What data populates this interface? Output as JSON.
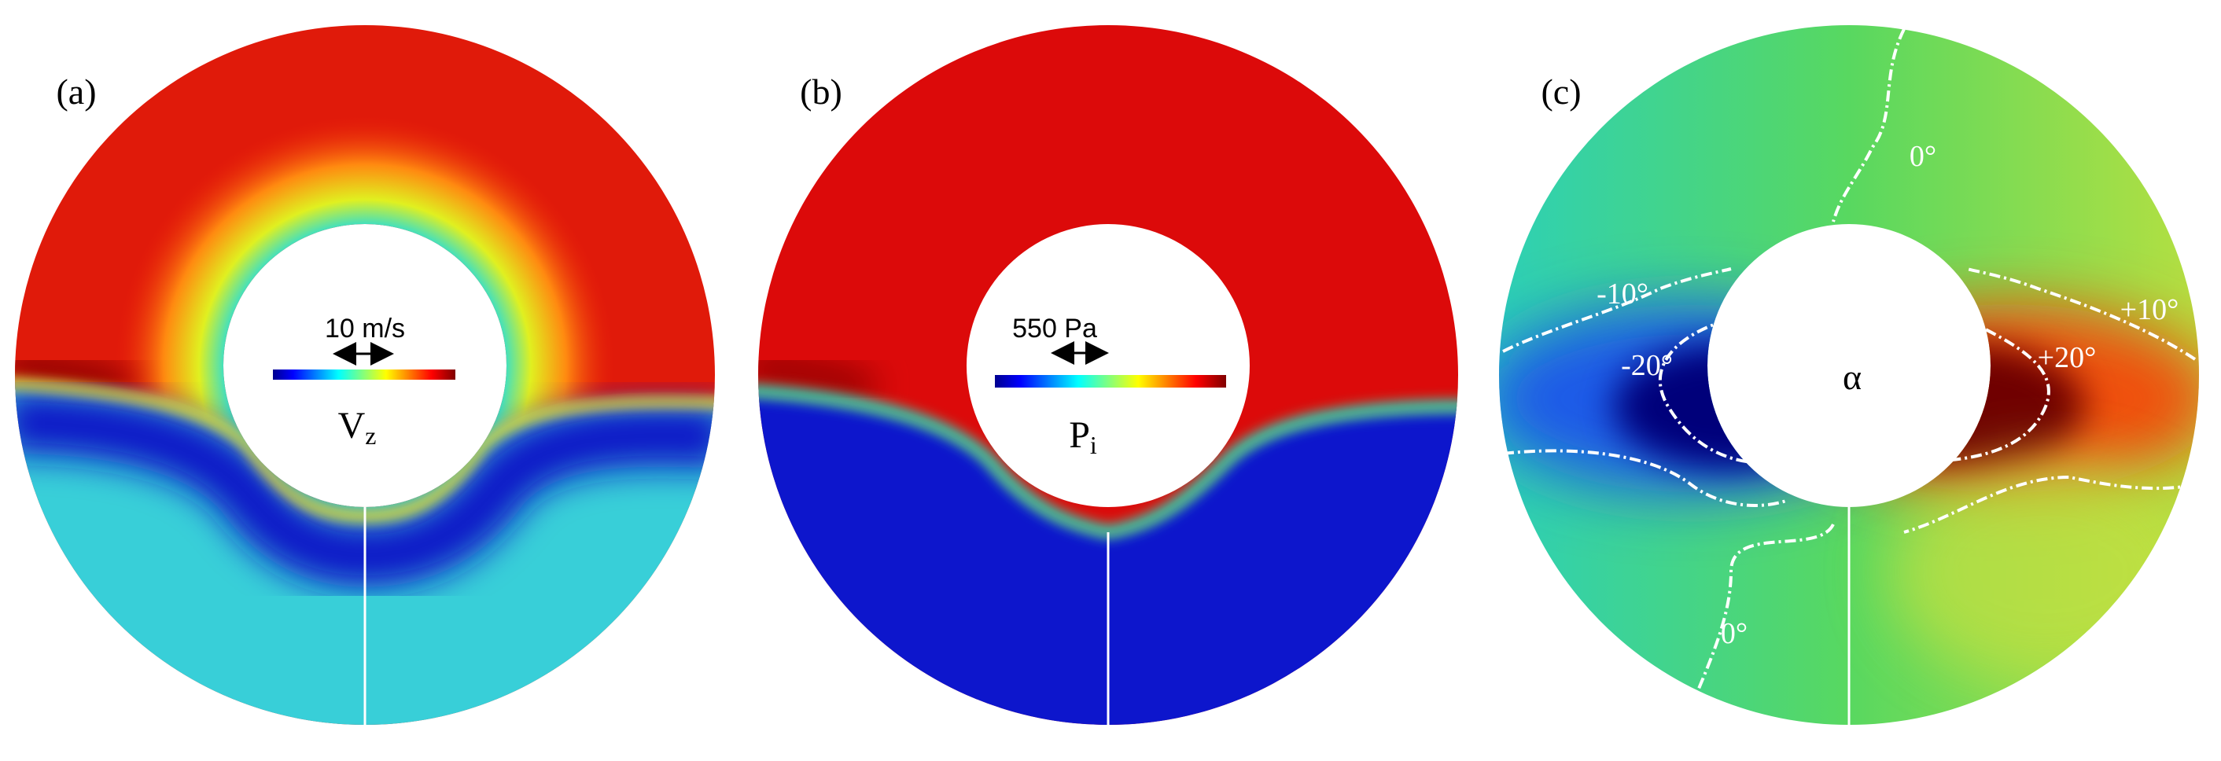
{
  "panels": [
    {
      "label": "(a)",
      "scale_bar": "10 m/s",
      "symbol": "V",
      "subscript": "z"
    },
    {
      "label": "(b)",
      "scale_bar": "550 Pa",
      "symbol": "P",
      "subscript": "i"
    },
    {
      "label": "(c)",
      "symbol": "α",
      "contour_labels": [
        "0°",
        "-10°",
        "+10°",
        "-20°",
        "+20°",
        "0°"
      ]
    }
  ]
}
